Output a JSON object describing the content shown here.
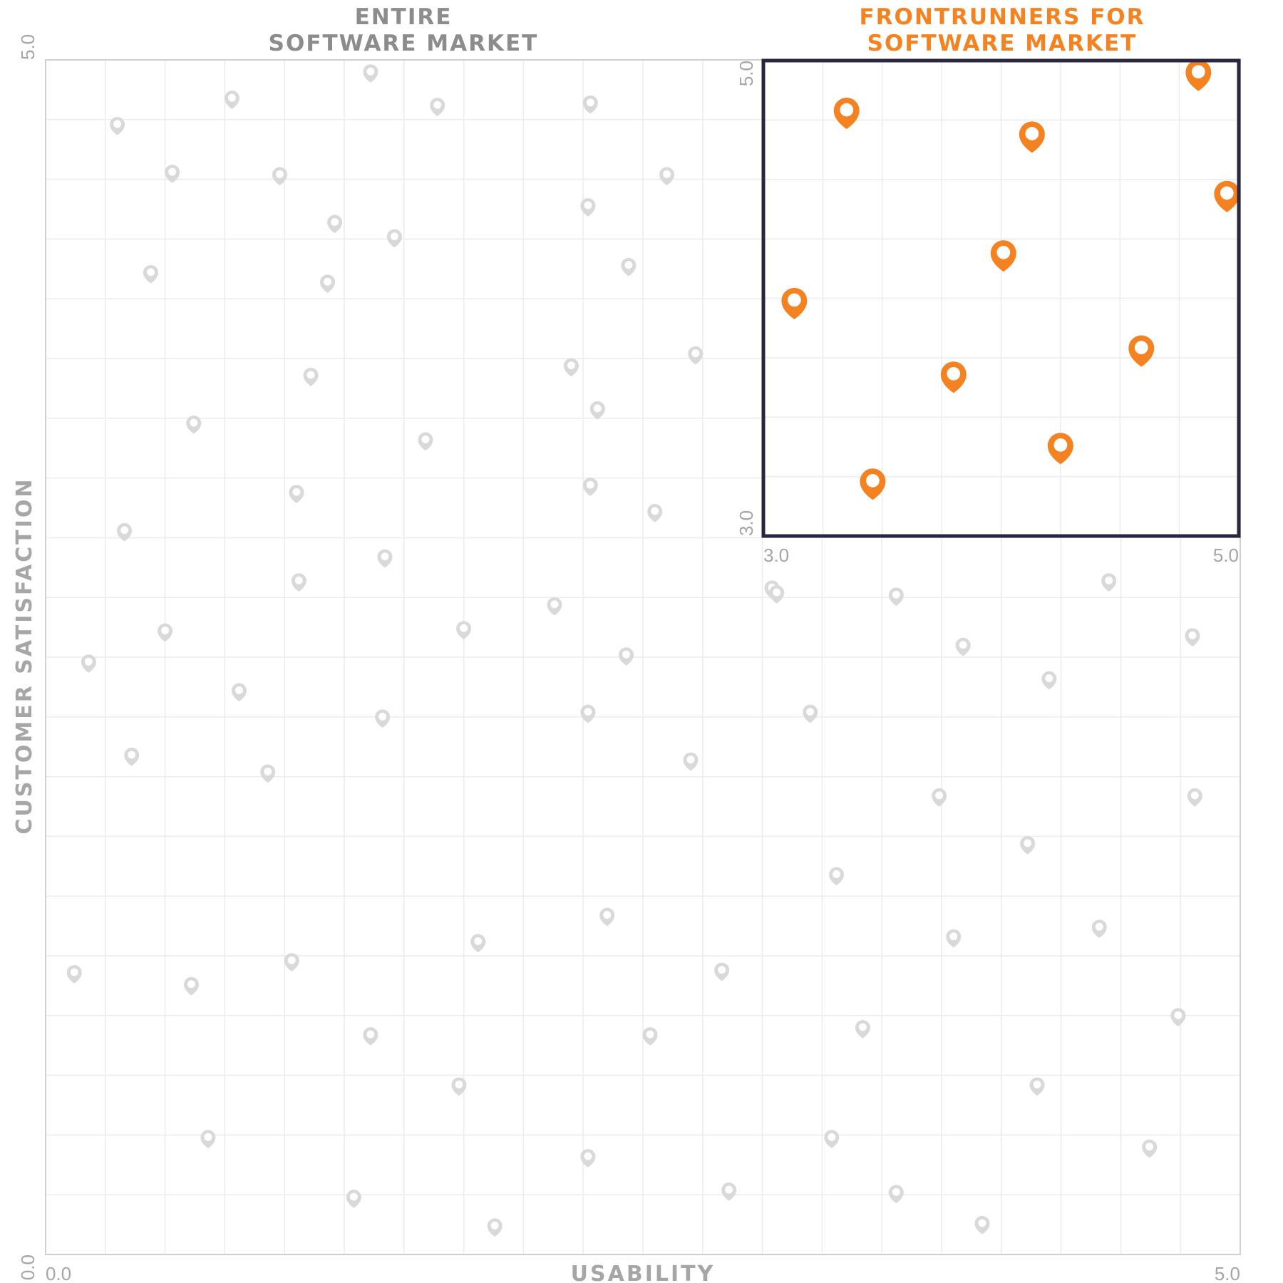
{
  "colors": {
    "background": "#ffffff",
    "grid": "#ececec",
    "axis": "#cfcfcf",
    "market_pin": "#d9d9d9",
    "frontrunner_pin": "#f58220",
    "inset_border": "#2b2640",
    "main_title": "#8c8c8c",
    "inset_title": "#f58220",
    "axis_text": "#a6a6a6"
  },
  "chart_data": [
    {
      "id": "entire-market",
      "type": "scatter",
      "title": [
        "ENTIRE",
        "SOFTWARE MARKET"
      ],
      "xlabel": "USABILITY",
      "ylabel": "CUSTOMER SATISFACTION",
      "xlim": [
        0.0,
        5.0
      ],
      "ylim": [
        0.0,
        5.0
      ],
      "x_tick_labels": [
        "0.0",
        "5.0"
      ],
      "y_tick_labels": [
        "0.0",
        "5.0"
      ],
      "grid": true,
      "marker": "map-pin-icon",
      "points": [
        [
          0.3,
          4.73
        ],
        [
          0.53,
          4.53
        ],
        [
          0.78,
          4.84
        ],
        [
          0.98,
          4.52
        ],
        [
          1.36,
          4.95
        ],
        [
          1.64,
          4.81
        ],
        [
          0.44,
          4.11
        ],
        [
          1.21,
          4.32
        ],
        [
          1.46,
          4.26
        ],
        [
          1.18,
          4.07
        ],
        [
          2.27,
          4.39
        ],
        [
          2.28,
          4.82
        ],
        [
          2.6,
          4.52
        ],
        [
          2.44,
          4.14
        ],
        [
          2.72,
          3.77
        ],
        [
          1.11,
          3.68
        ],
        [
          0.62,
          3.48
        ],
        [
          1.59,
          3.41
        ],
        [
          2.2,
          3.72
        ],
        [
          2.31,
          3.54
        ],
        [
          1.05,
          3.19
        ],
        [
          2.28,
          3.22
        ],
        [
          2.55,
          3.11
        ],
        [
          0.33,
          3.03
        ],
        [
          1.06,
          2.82
        ],
        [
          1.42,
          2.92
        ],
        [
          0.5,
          2.61
        ],
        [
          1.75,
          2.62
        ],
        [
          2.13,
          2.72
        ],
        [
          2.43,
          2.51
        ],
        [
          3.04,
          2.79
        ],
        [
          3.06,
          2.77
        ],
        [
          0.18,
          2.48
        ],
        [
          0.81,
          2.36
        ],
        [
          3.56,
          2.76
        ],
        [
          4.45,
          2.82
        ],
        [
          3.84,
          2.55
        ],
        [
          4.8,
          2.59
        ],
        [
          4.2,
          2.41
        ],
        [
          0.36,
          2.09
        ],
        [
          0.93,
          2.02
        ],
        [
          1.41,
          2.25
        ],
        [
          2.27,
          2.27
        ],
        [
          2.7,
          2.07
        ],
        [
          3.2,
          2.27
        ],
        [
          3.74,
          1.92
        ],
        [
          4.81,
          1.92
        ],
        [
          4.11,
          1.72
        ],
        [
          3.31,
          1.59
        ],
        [
          2.35,
          1.42
        ],
        [
          1.81,
          1.31
        ],
        [
          0.12,
          1.18
        ],
        [
          0.61,
          1.13
        ],
        [
          1.03,
          1.23
        ],
        [
          2.83,
          1.19
        ],
        [
          3.8,
          1.33
        ],
        [
          4.41,
          1.37
        ],
        [
          1.36,
          0.92
        ],
        [
          2.53,
          0.92
        ],
        [
          3.42,
          0.95
        ],
        [
          4.74,
          1.0
        ],
        [
          1.73,
          0.71
        ],
        [
          4.15,
          0.71
        ],
        [
          0.68,
          0.49
        ],
        [
          3.29,
          0.49
        ],
        [
          4.62,
          0.45
        ],
        [
          2.27,
          0.41
        ],
        [
          1.29,
          0.24
        ],
        [
          2.86,
          0.27
        ],
        [
          3.56,
          0.26
        ],
        [
          3.92,
          0.13
        ],
        [
          1.88,
          0.12
        ]
      ]
    },
    {
      "id": "frontrunners",
      "type": "scatter",
      "title": [
        "FRONTRUNNERS FOR",
        "SOFTWARE MARKET"
      ],
      "xlim": [
        3.0,
        5.0
      ],
      "ylim": [
        3.0,
        5.0
      ],
      "x_tick_labels": [
        "3.0",
        "5.0"
      ],
      "y_tick_labels": [
        "3.0",
        "5.0"
      ],
      "grid": true,
      "marker": "map-pin-icon",
      "points": [
        [
          4.83,
          4.95
        ],
        [
          3.35,
          4.79
        ],
        [
          4.13,
          4.69
        ],
        [
          4.95,
          4.44
        ],
        [
          4.01,
          4.19
        ],
        [
          3.13,
          3.99
        ],
        [
          4.59,
          3.79
        ],
        [
          3.8,
          3.68
        ],
        [
          4.25,
          3.38
        ],
        [
          3.46,
          3.23
        ]
      ]
    }
  ]
}
